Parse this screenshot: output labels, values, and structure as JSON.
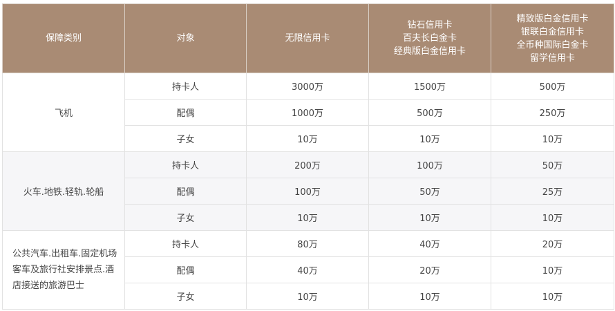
{
  "header": [
    "保障类别",
    "对象",
    "无限信用卡",
    [
      "钻石信用卡",
      "百夫长白金卡",
      "经典版白金信用卡"
    ],
    [
      "精致版白金信用卡",
      "银联白金信用卡",
      "全币种国际白金卡",
      "留学信用卡"
    ]
  ],
  "colors": {
    "header_bg": "#a98b74",
    "alt_row_bg": "#f6f6f8"
  },
  "groups": [
    {
      "category": "飞机",
      "rows": [
        [
          "持卡人",
          "3000万",
          "1500万",
          "500万"
        ],
        [
          "配偶",
          "1000万",
          "500万",
          "250万"
        ],
        [
          "子女",
          "10万",
          "10万",
          "10万"
        ]
      ]
    },
    {
      "category": "火车.地铁.轻轨.轮船",
      "rows": [
        [
          "持卡人",
          "200万",
          "100万",
          "50万"
        ],
        [
          "配偶",
          "100万",
          "50万",
          "25万"
        ],
        [
          "子女",
          "10万",
          "10万",
          "10万"
        ]
      ]
    },
    {
      "category": "公共汽车.出租车.固定机场客车及旅行社安排景点.酒店接送的旅游巴士",
      "rows": [
        [
          "持卡人",
          "80万",
          "40万",
          "20万"
        ],
        [
          "配偶",
          "40万",
          "20万",
          "10万"
        ],
        [
          "子女",
          "10万",
          "10万",
          "10万"
        ]
      ]
    }
  ]
}
